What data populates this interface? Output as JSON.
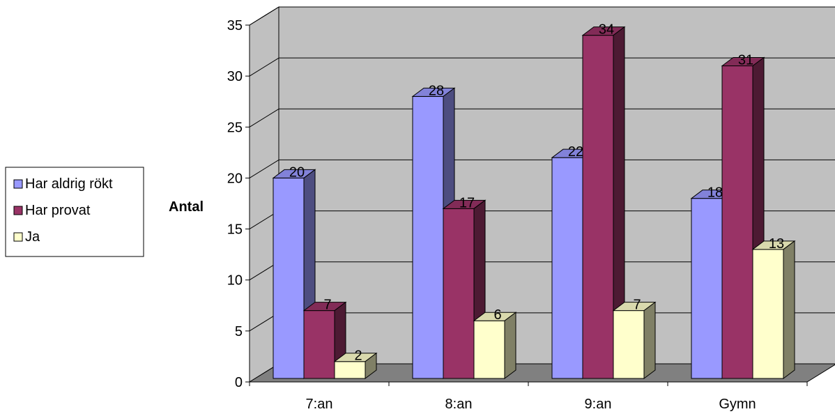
{
  "chart_data": {
    "type": "bar",
    "categories": [
      "7:an",
      "8:an",
      "9:an",
      "Gymn"
    ],
    "series": [
      {
        "name": "Har aldrig rökt",
        "values": [
          20,
          28,
          22,
          18
        ],
        "color": "#9999ff"
      },
      {
        "name": "Har provat",
        "values": [
          7,
          17,
          34,
          31
        ],
        "color": "#993366"
      },
      {
        "name": "Ja",
        "values": [
          2,
          6,
          7,
          13
        ],
        "color": "#ffffcc"
      }
    ],
    "title": "",
    "xlabel": "",
    "ylabel": "Antal",
    "ylim": [
      0,
      35
    ],
    "yticks": [
      "0",
      "5",
      "10",
      "15",
      "20",
      "25",
      "30",
      "35"
    ],
    "grid": true,
    "legend_position": "left",
    "projection": "3d",
    "wall_color": "#c0c0c0",
    "floor_color": "#808080"
  }
}
